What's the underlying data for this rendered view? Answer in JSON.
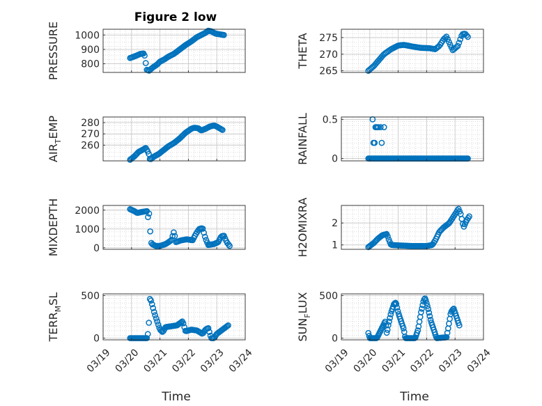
{
  "figure": {
    "title": "Figure 2 low",
    "marker_color": "#0072BD"
  },
  "chart_data": [
    {
      "type": "scatter",
      "id": "pressure",
      "ylabel": "PRESSURE",
      "xlabel": "",
      "xlim": [
        0,
        5
      ],
      "ylim": [
        740,
        1040
      ],
      "yticks": [
        {
          "v": 800,
          "label": "800"
        },
        {
          "v": 900,
          "label": "900"
        },
        {
          "v": 1000,
          "label": "1000"
        }
      ],
      "xticks": [],
      "grid": true,
      "knots": [
        [
          0.95,
          840
        ],
        [
          1.15,
          855
        ],
        [
          1.3,
          868
        ],
        [
          1.42,
          872
        ],
        [
          1.48,
          850
        ],
        [
          1.52,
          760
        ],
        [
          1.62,
          752
        ],
        [
          1.75,
          775
        ],
        [
          1.9,
          795
        ],
        [
          2.0,
          815
        ],
        [
          2.15,
          830
        ],
        [
          2.3,
          850
        ],
        [
          2.5,
          870
        ],
        [
          2.7,
          900
        ],
        [
          2.9,
          930
        ],
        [
          3.1,
          955
        ],
        [
          3.3,
          985
        ],
        [
          3.45,
          1000
        ],
        [
          3.6,
          1015
        ],
        [
          3.7,
          1030
        ],
        [
          3.82,
          1025
        ],
        [
          3.95,
          1010
        ],
        [
          4.1,
          1005
        ],
        [
          4.25,
          1000
        ]
      ],
      "npts": 85
    },
    {
      "type": "scatter",
      "id": "theta",
      "ylabel": "THETA",
      "xlabel": "",
      "xlim": [
        0,
        5
      ],
      "ylim": [
        264.5,
        277.5
      ],
      "yticks": [
        {
          "v": 265,
          "label": "265"
        },
        {
          "v": 270,
          "label": "270"
        },
        {
          "v": 275,
          "label": "275"
        }
      ],
      "xticks": [],
      "grid": true,
      "knots": [
        [
          0.95,
          265
        ],
        [
          1.15,
          266.5
        ],
        [
          1.3,
          268
        ],
        [
          1.5,
          270
        ],
        [
          1.75,
          271.5
        ],
        [
          2.0,
          272.6
        ],
        [
          2.2,
          272.8
        ],
        [
          2.5,
          272.3
        ],
        [
          2.8,
          271.9
        ],
        [
          3.1,
          271.8
        ],
        [
          3.3,
          271.5
        ],
        [
          3.45,
          272.5
        ],
        [
          3.6,
          274.5
        ],
        [
          3.7,
          275.3
        ],
        [
          3.82,
          273
        ],
        [
          3.92,
          271.2
        ],
        [
          4.1,
          272.5
        ],
        [
          4.25,
          276
        ],
        [
          4.35,
          276.2
        ],
        [
          4.45,
          275.2
        ]
      ],
      "npts": 80
    },
    {
      "type": "scatter",
      "id": "air_temp",
      "ylabel_main": "AIR",
      "ylabel_sub": "T",
      "ylabel_tail": "EMP",
      "xlabel": "",
      "xlim": [
        0,
        5
      ],
      "ylim": [
        246,
        285
      ],
      "yticks": [
        {
          "v": 260,
          "label": "260"
        },
        {
          "v": 270,
          "label": "270"
        },
        {
          "v": 280,
          "label": "280"
        }
      ],
      "xticks": [],
      "grid": true,
      "knots": [
        [
          0.95,
          247
        ],
        [
          1.1,
          250
        ],
        [
          1.25,
          254
        ],
        [
          1.4,
          256
        ],
        [
          1.5,
          257.5
        ],
        [
          1.6,
          253
        ],
        [
          1.65,
          247
        ],
        [
          1.8,
          250
        ],
        [
          1.95,
          252
        ],
        [
          2.1,
          255
        ],
        [
          2.3,
          259
        ],
        [
          2.5,
          262
        ],
        [
          2.7,
          266
        ],
        [
          2.9,
          271
        ],
        [
          3.1,
          274.5
        ],
        [
          3.2,
          275.5
        ],
        [
          3.35,
          275
        ],
        [
          3.45,
          273
        ],
        [
          3.6,
          274.5
        ],
        [
          3.75,
          276.5
        ],
        [
          3.9,
          277.5
        ],
        [
          4.0,
          276.5
        ],
        [
          4.1,
          275
        ],
        [
          4.2,
          273.5
        ]
      ],
      "npts": 90
    },
    {
      "type": "scatter",
      "id": "rainfall",
      "ylabel": "RAINFALL",
      "xlabel": "",
      "xlim": [
        0,
        5
      ],
      "ylim": [
        -0.03,
        0.53
      ],
      "yticks": [
        {
          "v": 0,
          "label": "0"
        },
        {
          "v": 0.5,
          "label": "0.5"
        }
      ],
      "xticks": [],
      "grid": true,
      "knots": [
        [
          0.95,
          0
        ],
        [
          4.45,
          0
        ]
      ],
      "npts": 110,
      "extra_points": [
        [
          1.1,
          0.5
        ],
        [
          1.13,
          0.2
        ],
        [
          1.17,
          0.2
        ],
        [
          1.2,
          0.4
        ],
        [
          1.23,
          0.4
        ],
        [
          1.26,
          0.4
        ],
        [
          1.3,
          0.4
        ],
        [
          1.38,
          0.4
        ],
        [
          1.42,
          0.2
        ],
        [
          1.5,
          0.4
        ]
      ]
    },
    {
      "type": "scatter",
      "id": "mixdepth",
      "ylabel": "MIXDEPTH",
      "xlabel": "",
      "xlim": [
        0,
        5
      ],
      "ylim": [
        -80,
        2250
      ],
      "yticks": [
        {
          "v": 0,
          "label": "0"
        },
        {
          "v": 1000,
          "label": "1000"
        },
        {
          "v": 2000,
          "label": "2000"
        }
      ],
      "xticks": [],
      "grid": true,
      "knots": [
        [
          0.95,
          2050
        ],
        [
          1.1,
          1950
        ],
        [
          1.2,
          1850
        ],
        [
          1.35,
          1900
        ],
        [
          1.55,
          1950
        ],
        [
          1.6,
          1400
        ],
        [
          1.62,
          1850
        ],
        [
          1.68,
          300
        ],
        [
          1.72,
          200
        ],
        [
          1.85,
          100
        ],
        [
          2.0,
          100
        ],
        [
          2.2,
          200
        ],
        [
          2.4,
          400
        ],
        [
          2.5,
          900
        ],
        [
          2.55,
          300
        ],
        [
          2.75,
          400
        ],
        [
          2.95,
          450
        ],
        [
          3.15,
          400
        ],
        [
          3.25,
          700
        ],
        [
          3.38,
          1000
        ],
        [
          3.5,
          1050
        ],
        [
          3.6,
          500
        ],
        [
          3.7,
          150
        ],
        [
          3.9,
          200
        ],
        [
          4.05,
          300
        ],
        [
          4.15,
          600
        ],
        [
          4.25,
          650
        ],
        [
          4.35,
          300
        ],
        [
          4.45,
          100
        ]
      ],
      "npts": 90
    },
    {
      "type": "scatter",
      "id": "h2omixra",
      "ylabel": "H2OMIXRA",
      "xlabel": "",
      "xlim": [
        0,
        5
      ],
      "ylim": [
        0.8,
        2.8
      ],
      "yticks": [
        {
          "v": 1,
          "label": "1"
        },
        {
          "v": 2,
          "label": "2"
        }
      ],
      "xticks": [],
      "grid": true,
      "knots": [
        [
          0.95,
          0.9
        ],
        [
          1.15,
          1.1
        ],
        [
          1.3,
          1.3
        ],
        [
          1.45,
          1.45
        ],
        [
          1.6,
          1.5
        ],
        [
          1.68,
          1.2
        ],
        [
          1.75,
          1.0
        ],
        [
          2.0,
          0.98
        ],
        [
          2.5,
          0.95
        ],
        [
          3.0,
          0.95
        ],
        [
          3.2,
          1.0
        ],
        [
          3.3,
          1.2
        ],
        [
          3.45,
          1.6
        ],
        [
          3.6,
          1.8
        ],
        [
          3.8,
          2.0
        ],
        [
          3.95,
          2.3
        ],
        [
          4.05,
          2.5
        ],
        [
          4.12,
          2.65
        ],
        [
          4.2,
          2.4
        ],
        [
          4.3,
          1.8
        ],
        [
          4.4,
          2.1
        ],
        [
          4.5,
          2.3
        ]
      ],
      "npts": 95
    },
    {
      "type": "scatter",
      "id": "terr_msl",
      "ylabel_main": "TERR",
      "ylabel_sub": "M",
      "ylabel_tail": "SL",
      "xlabel": "Time",
      "xlim": [
        0,
        5
      ],
      "ylim": [
        -20,
        520
      ],
      "yticks": [
        {
          "v": 0,
          "label": "0"
        },
        {
          "v": 500,
          "label": "500"
        }
      ],
      "xticks": [
        {
          "v": 0,
          "label": "03/19"
        },
        {
          "v": 1,
          "label": "03/20"
        },
        {
          "v": 2,
          "label": "03/21"
        },
        {
          "v": 3,
          "label": "03/22"
        },
        {
          "v": 4,
          "label": "03/23"
        },
        {
          "v": 5,
          "label": "03/24"
        }
      ],
      "grid": true,
      "knots": [
        [
          0.95,
          0
        ],
        [
          1.3,
          0
        ],
        [
          1.55,
          0
        ],
        [
          1.6,
          100
        ],
        [
          1.65,
          480
        ],
        [
          1.72,
          400
        ],
        [
          1.8,
          300
        ],
        [
          1.9,
          200
        ],
        [
          2.0,
          100
        ],
        [
          2.1,
          70
        ],
        [
          2.2,
          130
        ],
        [
          2.4,
          140
        ],
        [
          2.6,
          150
        ],
        [
          2.8,
          200
        ],
        [
          2.9,
          80
        ],
        [
          3.1,
          100
        ],
        [
          3.3,
          90
        ],
        [
          3.5,
          50
        ],
        [
          3.6,
          100
        ],
        [
          3.7,
          120
        ],
        [
          3.8,
          0
        ],
        [
          3.9,
          0
        ],
        [
          4.0,
          50
        ],
        [
          4.2,
          100
        ],
        [
          4.4,
          150
        ]
      ],
      "npts": 95
    },
    {
      "type": "scatter",
      "id": "sun_flux",
      "ylabel_main": "SUN",
      "ylabel_sub": "F",
      "ylabel_tail": "LUX",
      "xlabel": "Time",
      "xlim": [
        0,
        5
      ],
      "ylim": [
        -20,
        520
      ],
      "yticks": [
        {
          "v": 0,
          "label": "0"
        },
        {
          "v": 500,
          "label": "500"
        }
      ],
      "xticks": [
        {
          "v": 0,
          "label": "03/19"
        },
        {
          "v": 1,
          "label": "03/20"
        },
        {
          "v": 2,
          "label": "03/21"
        },
        {
          "v": 3,
          "label": "03/22"
        },
        {
          "v": 4,
          "label": "03/23"
        },
        {
          "v": 5,
          "label": "03/24"
        }
      ],
      "grid": true,
      "knots": [
        [
          0.95,
          60
        ],
        [
          1.0,
          0
        ],
        [
          1.25,
          0
        ],
        [
          1.4,
          100
        ],
        [
          1.55,
          200
        ],
        [
          1.6,
          50
        ],
        [
          1.65,
          150
        ],
        [
          1.75,
          300
        ],
        [
          1.85,
          400
        ],
        [
          1.92,
          420
        ],
        [
          2.0,
          300
        ],
        [
          2.1,
          200
        ],
        [
          2.2,
          100
        ],
        [
          2.25,
          0
        ],
        [
          2.6,
          0
        ],
        [
          2.7,
          100
        ],
        [
          2.8,
          300
        ],
        [
          2.9,
          450
        ],
        [
          2.95,
          470
        ],
        [
          3.05,
          350
        ],
        [
          3.15,
          200
        ],
        [
          3.3,
          50
        ],
        [
          3.35,
          0
        ],
        [
          3.7,
          10
        ],
        [
          3.75,
          100
        ],
        [
          3.85,
          300
        ],
        [
          3.95,
          350
        ],
        [
          4.05,
          250
        ],
        [
          4.1,
          200
        ],
        [
          4.15,
          150
        ]
      ],
      "npts": 115
    }
  ]
}
